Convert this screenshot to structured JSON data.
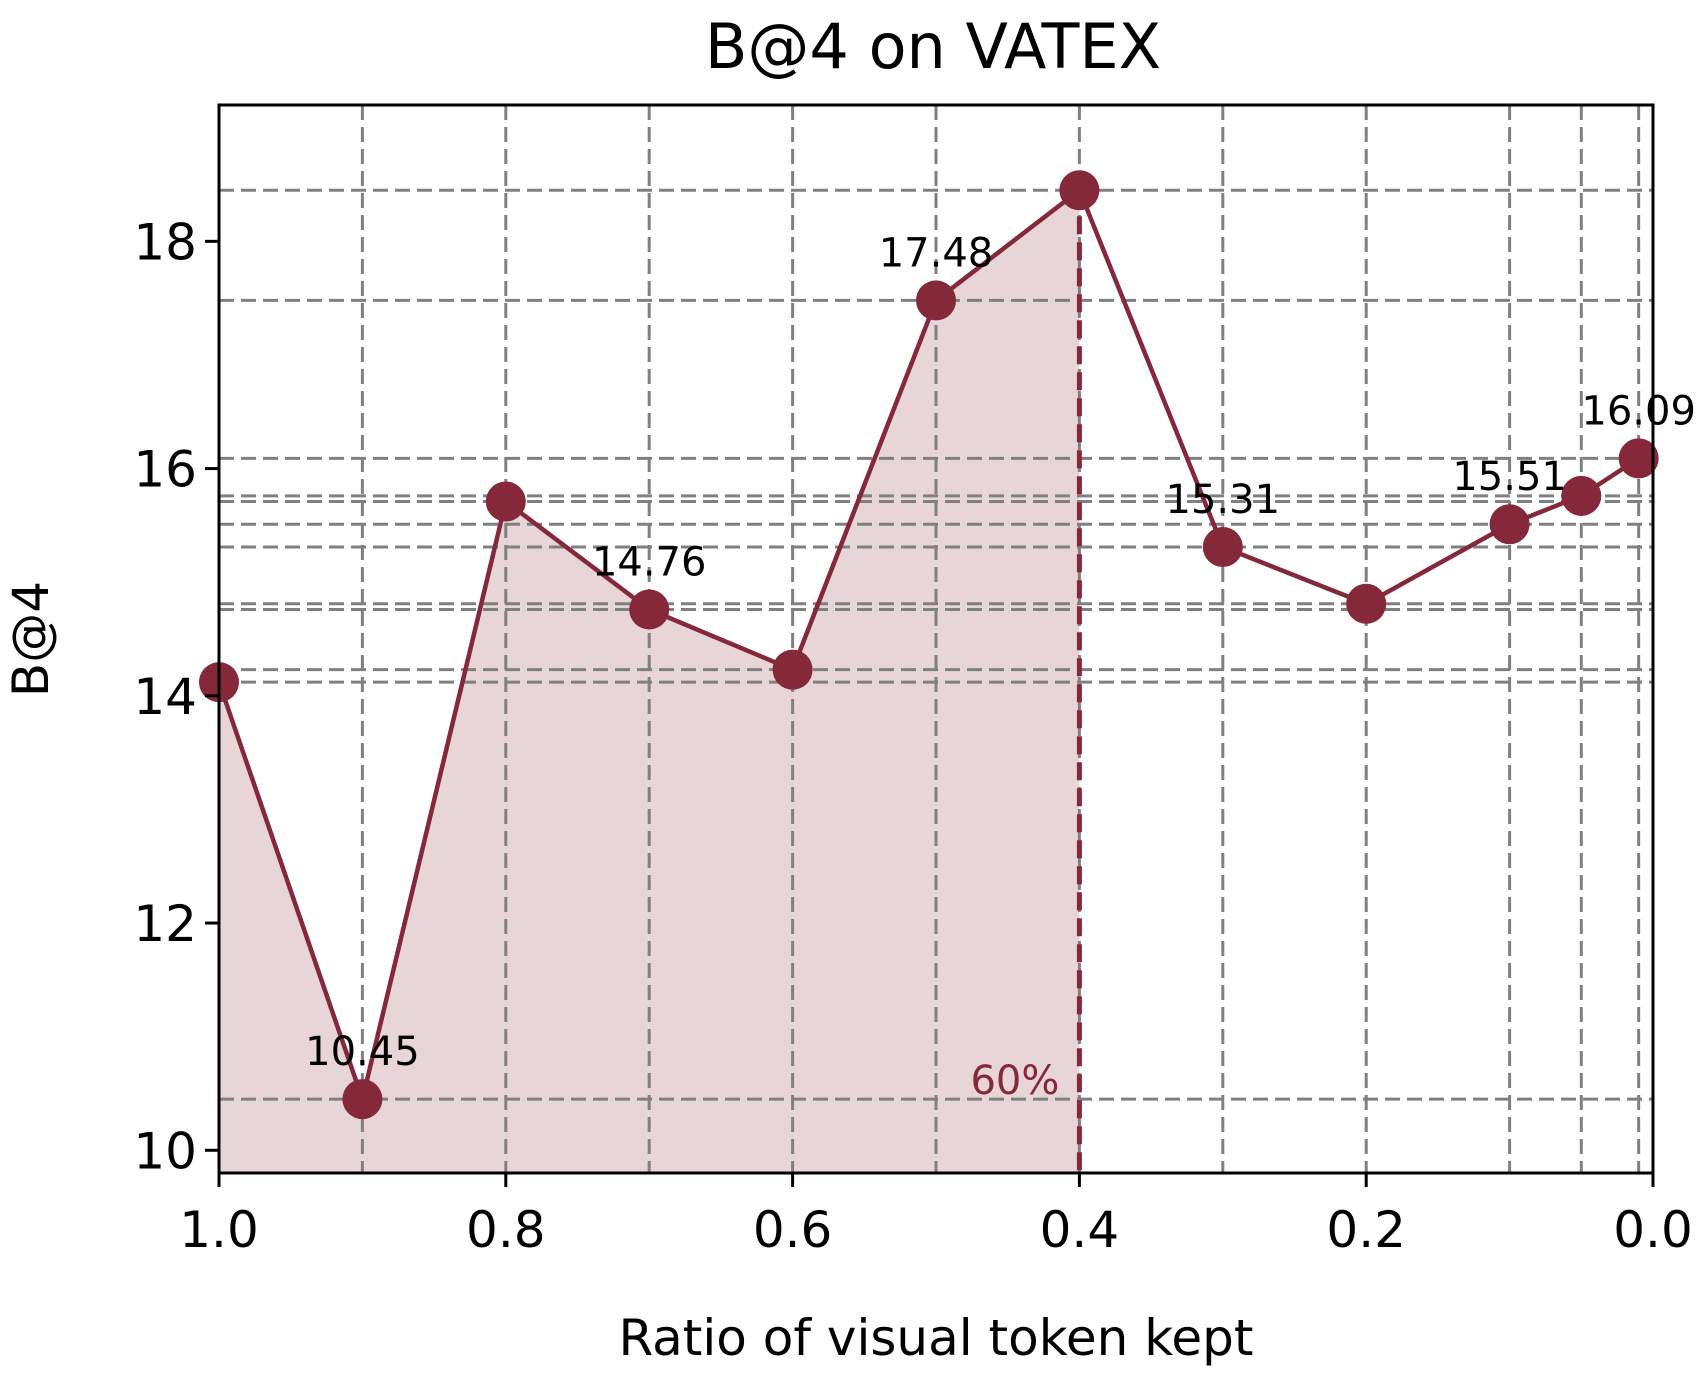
{
  "chart_data": {
    "type": "line",
    "title": "B@4 on VATEX",
    "xlabel": "Ratio of visual token kept",
    "ylabel": "B@4",
    "x_axis_reversed": true,
    "xlim": [
      1.0,
      0.0
    ],
    "ylim": [
      9.8,
      19.2
    ],
    "xticks": [
      1.0,
      0.8,
      0.6,
      0.4,
      0.2,
      0.0
    ],
    "xtick_labels": [
      "1.0",
      "0.8",
      "0.6",
      "0.4",
      "0.2",
      "0.0"
    ],
    "yticks": [
      10,
      12,
      14,
      16,
      18
    ],
    "ytick_labels": [
      "10",
      "12",
      "14",
      "16",
      "18"
    ],
    "grid": true,
    "series": [
      {
        "color": "#85283a",
        "x": [
          1.0,
          0.9,
          0.8,
          0.7,
          0.6,
          0.5,
          0.4,
          0.3,
          0.2,
          0.1,
          0.05,
          0.01
        ],
        "values": [
          14.12,
          10.45,
          15.71,
          14.76,
          14.23,
          17.48,
          18.45,
          15.31,
          14.81,
          15.51,
          15.76,
          16.09
        ]
      }
    ],
    "data_labels": [
      {
        "x": 0.9,
        "text": "10.45"
      },
      {
        "x": 0.7,
        "text": "14.76"
      },
      {
        "x": 0.5,
        "text": "17.48"
      },
      {
        "x": 0.3,
        "text": "15.31"
      },
      {
        "x": 0.1,
        "text": "15.51"
      },
      {
        "x": 0.01,
        "text": "16.09"
      }
    ],
    "shaded_region": {
      "from_x": 1.0,
      "to_x": 0.4,
      "color": "#e7d5d8"
    },
    "vertical_marker": {
      "x": 0.4,
      "label": "60%",
      "color": "#85283a"
    }
  }
}
